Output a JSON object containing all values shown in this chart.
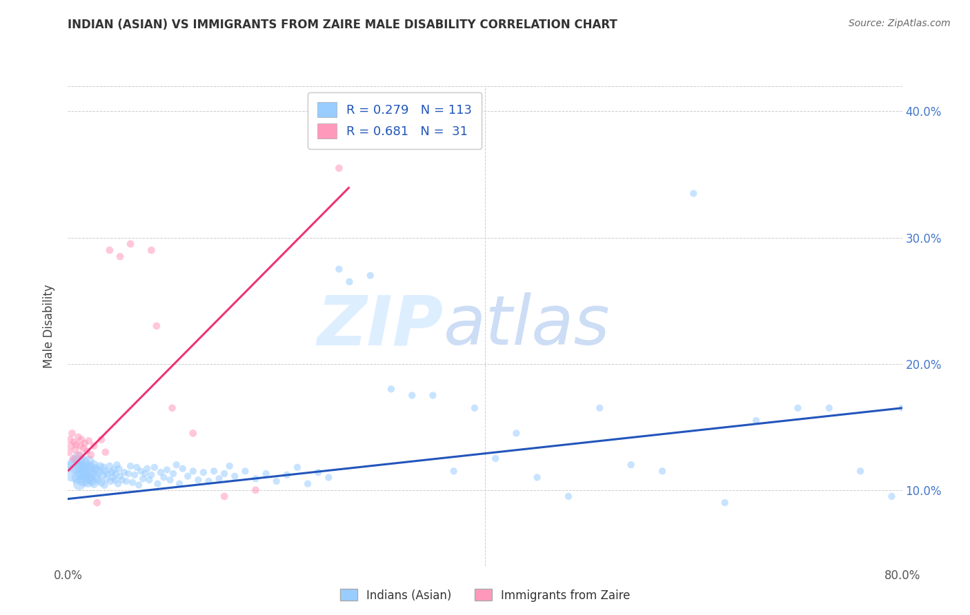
{
  "title": "INDIAN (ASIAN) VS IMMIGRANTS FROM ZAIRE MALE DISABILITY CORRELATION CHART",
  "source_text": "Source: ZipAtlas.com",
  "ylabel": "Male Disability",
  "xlim": [
    0.0,
    0.8
  ],
  "ylim": [
    0.04,
    0.42
  ],
  "x_tick_positions": [
    0.0,
    0.1,
    0.2,
    0.3,
    0.4,
    0.5,
    0.6,
    0.7,
    0.8
  ],
  "x_tick_labels": [
    "0.0%",
    "",
    "",
    "",
    "",
    "",
    "",
    "",
    "80.0%"
  ],
  "y_tick_positions": [
    0.1,
    0.2,
    0.3,
    0.4
  ],
  "y_tick_labels": [
    "10.0%",
    "20.0%",
    "30.0%",
    "40.0%"
  ],
  "color_asian": "#99CCFF",
  "color_zaire": "#FF99BB",
  "color_line_asian": "#2255BB",
  "color_line_zaire": "#EE3377",
  "label_asian": "Indians (Asian)",
  "label_zaire": "Immigrants from Zaire",
  "watermark_zip_color": "#DDEEFF",
  "watermark_atlas_color": "#CCDDF5",
  "asian_x": [
    0.005,
    0.008,
    0.01,
    0.01,
    0.011,
    0.012,
    0.013,
    0.015,
    0.015,
    0.016,
    0.017,
    0.018,
    0.019,
    0.02,
    0.02,
    0.021,
    0.022,
    0.022,
    0.023,
    0.024,
    0.025,
    0.025,
    0.026,
    0.027,
    0.028,
    0.029,
    0.03,
    0.031,
    0.032,
    0.033,
    0.034,
    0.035,
    0.036,
    0.037,
    0.038,
    0.04,
    0.041,
    0.042,
    0.043,
    0.044,
    0.045,
    0.046,
    0.047,
    0.048,
    0.049,
    0.05,
    0.052,
    0.054,
    0.056,
    0.058,
    0.06,
    0.062,
    0.064,
    0.066,
    0.068,
    0.07,
    0.072,
    0.074,
    0.076,
    0.078,
    0.08,
    0.083,
    0.086,
    0.089,
    0.092,
    0.095,
    0.098,
    0.101,
    0.104,
    0.107,
    0.11,
    0.115,
    0.12,
    0.125,
    0.13,
    0.135,
    0.14,
    0.145,
    0.15,
    0.155,
    0.16,
    0.17,
    0.18,
    0.19,
    0.2,
    0.21,
    0.22,
    0.23,
    0.24,
    0.25,
    0.26,
    0.27,
    0.29,
    0.31,
    0.33,
    0.35,
    0.37,
    0.39,
    0.41,
    0.43,
    0.45,
    0.48,
    0.51,
    0.54,
    0.57,
    0.6,
    0.63,
    0.66,
    0.7,
    0.73,
    0.76,
    0.79,
    0.8
  ],
  "asian_y": [
    0.115,
    0.12,
    0.11,
    0.125,
    0.105,
    0.118,
    0.113,
    0.108,
    0.122,
    0.116,
    0.112,
    0.119,
    0.106,
    0.123,
    0.109,
    0.115,
    0.111,
    0.118,
    0.107,
    0.113,
    0.12,
    0.105,
    0.117,
    0.11,
    0.116,
    0.108,
    0.114,
    0.119,
    0.106,
    0.112,
    0.118,
    0.104,
    0.115,
    0.109,
    0.113,
    0.119,
    0.107,
    0.114,
    0.11,
    0.116,
    0.108,
    0.113,
    0.12,
    0.105,
    0.117,
    0.111,
    0.108,
    0.114,
    0.107,
    0.113,
    0.119,
    0.106,
    0.112,
    0.118,
    0.104,
    0.115,
    0.109,
    0.113,
    0.117,
    0.108,
    0.112,
    0.118,
    0.105,
    0.114,
    0.11,
    0.116,
    0.108,
    0.113,
    0.12,
    0.105,
    0.117,
    0.111,
    0.115,
    0.108,
    0.114,
    0.107,
    0.115,
    0.109,
    0.113,
    0.119,
    0.111,
    0.115,
    0.109,
    0.113,
    0.107,
    0.112,
    0.118,
    0.105,
    0.114,
    0.11,
    0.275,
    0.265,
    0.27,
    0.18,
    0.175,
    0.175,
    0.115,
    0.165,
    0.125,
    0.145,
    0.11,
    0.095,
    0.165,
    0.12,
    0.115,
    0.335,
    0.09,
    0.155,
    0.165,
    0.165,
    0.115,
    0.095,
    0.165
  ],
  "asian_size": [
    500,
    350,
    200,
    200,
    180,
    150,
    150,
    180,
    160,
    140,
    130,
    120,
    110,
    130,
    120,
    110,
    100,
    100,
    90,
    90,
    90,
    85,
    85,
    80,
    80,
    75,
    75,
    70,
    70,
    70,
    65,
    65,
    65,
    60,
    60,
    60,
    60,
    60,
    60,
    60,
    55,
    55,
    55,
    55,
    55,
    55,
    55,
    55,
    55,
    55,
    55,
    55,
    55,
    55,
    55,
    55,
    55,
    55,
    55,
    55,
    55,
    55,
    55,
    55,
    55,
    55,
    55,
    55,
    55,
    55,
    55,
    55,
    55,
    55,
    55,
    55,
    55,
    55,
    55,
    55,
    55,
    55,
    55,
    55,
    55,
    55,
    55,
    55,
    55,
    55,
    55,
    55,
    55,
    55,
    55,
    55,
    55,
    55,
    55,
    55,
    55,
    55,
    55,
    55,
    55,
    55,
    55,
    55,
    55,
    55,
    55,
    55,
    55
  ],
  "zaire_x": [
    0.001,
    0.002,
    0.003,
    0.004,
    0.005,
    0.006,
    0.007,
    0.008,
    0.01,
    0.011,
    0.012,
    0.013,
    0.015,
    0.016,
    0.018,
    0.02,
    0.022,
    0.025,
    0.028,
    0.032,
    0.036,
    0.04,
    0.05,
    0.06,
    0.08,
    0.085,
    0.1,
    0.12,
    0.15,
    0.18,
    0.26
  ],
  "zaire_y": [
    0.13,
    0.14,
    0.135,
    0.145,
    0.125,
    0.138,
    0.132,
    0.136,
    0.142,
    0.128,
    0.135,
    0.14,
    0.133,
    0.137,
    0.131,
    0.139,
    0.128,
    0.135,
    0.09,
    0.14,
    0.13,
    0.29,
    0.285,
    0.295,
    0.29,
    0.23,
    0.165,
    0.145,
    0.095,
    0.1,
    0.355
  ],
  "zaire_size": [
    60,
    60,
    60,
    60,
    60,
    60,
    60,
    60,
    60,
    60,
    60,
    60,
    60,
    60,
    60,
    60,
    60,
    60,
    60,
    60,
    60,
    60,
    60,
    60,
    60,
    60,
    60,
    60,
    60,
    60,
    60
  ],
  "asian_line_x": [
    0.0,
    0.8
  ],
  "asian_line_y_start": 0.093,
  "asian_line_y_end": 0.165,
  "zaire_line_x": [
    0.0,
    0.27
  ],
  "zaire_line_y_start": 0.115,
  "zaire_line_y_end": 0.34
}
